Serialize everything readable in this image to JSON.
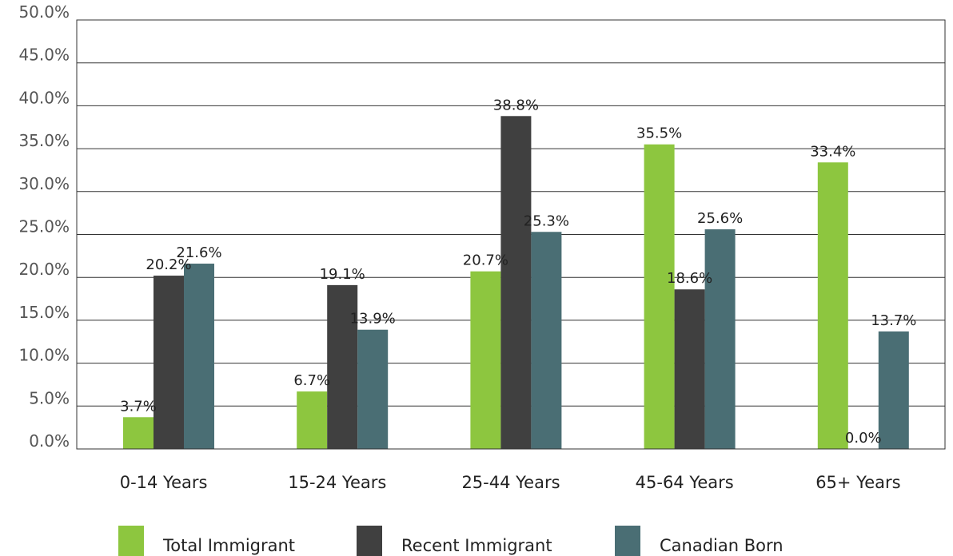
{
  "chart_data": {
    "type": "bar",
    "categories": [
      "0-14 Years",
      "15-24 Years",
      "25-44 Years",
      "45-64 Years",
      "65+ Years"
    ],
    "series": [
      {
        "name": "Total Immigrant",
        "color": "#8dc63f",
        "values": [
          3.7,
          6.7,
          20.7,
          35.5,
          33.4
        ],
        "labels": [
          "3.7%",
          "6.7%",
          "20.7%",
          "35.5%",
          "33.4%"
        ]
      },
      {
        "name": "Recent Immigrant",
        "color": "#404040",
        "values": [
          20.2,
          19.1,
          38.8,
          18.6,
          0.0
        ],
        "labels": [
          "20.2%",
          "19.1%",
          "38.8%",
          "18.6%",
          "0.0%"
        ]
      },
      {
        "name": "Canadian Born",
        "color": "#4a6e74",
        "values": [
          21.6,
          13.9,
          25.3,
          25.6,
          13.7
        ],
        "labels": [
          "21.6%",
          "13.9%",
          "25.3%",
          "25.6%",
          "13.7%"
        ]
      }
    ],
    "ylim": [
      0,
      50
    ],
    "y_ticks": [
      "0.0%",
      "5.0%",
      "10.0%",
      "15.0%",
      "20.0%",
      "25.0%",
      "30.0%",
      "35.0%",
      "40.0%",
      "45.0%",
      "50.0%"
    ],
    "y_tick_values": [
      0,
      5,
      10,
      15,
      20,
      25,
      30,
      35,
      40,
      45,
      50
    ],
    "grid": true,
    "legend_position": "bottom",
    "title": "",
    "xlabel": "",
    "ylabel": ""
  }
}
